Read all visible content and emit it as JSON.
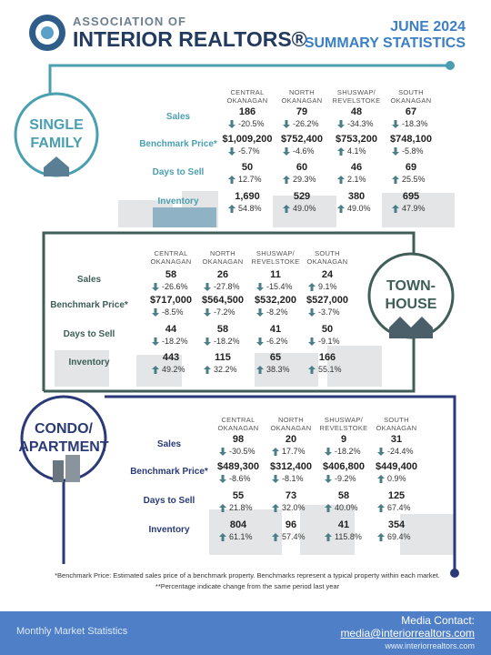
{
  "header": {
    "org_line1": "ASSOCIATION OF",
    "org_line2": "INTERIOR REALTORS®",
    "title_line1": "JUNE 2024",
    "title_line2": "SUMMARY STATISTICS"
  },
  "sections": [
    {
      "label": [
        "SINGLE",
        "FAMILY"
      ],
      "regions": [
        [
          "CENTRAL",
          "OKANAGAN"
        ],
        [
          "NORTH",
          "OKANAGAN"
        ],
        [
          "SHUSWAP/",
          "REVELSTOKE"
        ],
        [
          "SOUTH",
          "OKANAGAN"
        ]
      ],
      "rows": [
        {
          "label": "Sales",
          "cells": [
            {
              "value": "186",
              "change": "-20.5%"
            },
            {
              "value": "79",
              "change": "-26.2%"
            },
            {
              "value": "48",
              "change": "-34.3%"
            },
            {
              "value": "67",
              "change": "-18.3%"
            }
          ]
        },
        {
          "label": "Benchmark Price*",
          "cells": [
            {
              "value": "$1,009,200",
              "change": "-5.7%"
            },
            {
              "value": "$752,400",
              "change": "-4.6%"
            },
            {
              "value": "$753,200",
              "change": "4.1%"
            },
            {
              "value": "$748,100",
              "change": "-5.8%"
            }
          ]
        },
        {
          "label": "Days to Sell",
          "cells": [
            {
              "value": "50",
              "change": "12.7%"
            },
            {
              "value": "60",
              "change": "29.3%"
            },
            {
              "value": "46",
              "change": "2.1%"
            },
            {
              "value": "69",
              "change": "25.5%"
            }
          ]
        },
        {
          "label": "Inventory",
          "cells": [
            {
              "value": "1,690",
              "change": "54.8%"
            },
            {
              "value": "529",
              "change": "49.0%"
            },
            {
              "value": "380",
              "change": "49.0%"
            },
            {
              "value": "695",
              "change": "47.9%"
            }
          ]
        }
      ]
    },
    {
      "label": [
        "TOWN-",
        "HOUSE"
      ],
      "regions": [
        [
          "CENTRAL",
          "OKANAGAN"
        ],
        [
          "NORTH",
          "OKANAGAN"
        ],
        [
          "SHUSWAP/",
          "REVELSTOKE"
        ],
        [
          "SOUTH",
          "OKANAGAN"
        ]
      ],
      "rows": [
        {
          "label": "Sales",
          "cells": [
            {
              "value": "58",
              "change": "-26.6%"
            },
            {
              "value": "26",
              "change": "-27.8%"
            },
            {
              "value": "11",
              "change": "-15.4%"
            },
            {
              "value": "24",
              "change": "9.1%"
            }
          ]
        },
        {
          "label": "Benchmark Price*",
          "cells": [
            {
              "value": "$717,000",
              "change": "-8.5%"
            },
            {
              "value": "$564,500",
              "change": "-7.2%"
            },
            {
              "value": "$532,200",
              "change": "-8.2%"
            },
            {
              "value": "$527,000",
              "change": "-3.7%"
            }
          ]
        },
        {
          "label": "Days to Sell",
          "cells": [
            {
              "value": "44",
              "change": "-18.2%"
            },
            {
              "value": "58",
              "change": "-18.2%"
            },
            {
              "value": "41",
              "change": "-6.2%"
            },
            {
              "value": "50",
              "change": "-9.1%"
            }
          ]
        },
        {
          "label": "Inventory",
          "cells": [
            {
              "value": "443",
              "change": "49.2%"
            },
            {
              "value": "115",
              "change": "32.2%"
            },
            {
              "value": "65",
              "change": "38.3%"
            },
            {
              "value": "166",
              "change": "55.1%"
            }
          ]
        }
      ]
    },
    {
      "label": [
        "CONDO/",
        "APARTMENT"
      ],
      "regions": [
        [
          "CENTRAL",
          "OKANAGAN"
        ],
        [
          "NORTH",
          "OKANAGAN"
        ],
        [
          "SHUSWAP/",
          "REVELSTOKE"
        ],
        [
          "SOUTH",
          "OKANAGAN"
        ]
      ],
      "rows": [
        {
          "label": "Sales",
          "cells": [
            {
              "value": "98",
              "change": "-30.5%"
            },
            {
              "value": "20",
              "change": "17.7%"
            },
            {
              "value": "9",
              "change": "-18.2%"
            },
            {
              "value": "31",
              "change": "-24.4%"
            }
          ]
        },
        {
          "label": "Benchmark Price*",
          "cells": [
            {
              "value": "$489,300",
              "change": "-8.6%"
            },
            {
              "value": "$312,400",
              "change": "-8.1%"
            },
            {
              "value": "$406,800",
              "change": "-9.2%"
            },
            {
              "value": "$449,400",
              "change": "0.9%"
            }
          ]
        },
        {
          "label": "Days to Sell",
          "cells": [
            {
              "value": "55",
              "change": "21.8%"
            },
            {
              "value": "73",
              "change": "32.0%"
            },
            {
              "value": "58",
              "change": "40.0%"
            },
            {
              "value": "125",
              "change": "67.4%"
            }
          ]
        },
        {
          "label": "Inventory",
          "cells": [
            {
              "value": "804",
              "change": "61.1%"
            },
            {
              "value": "96",
              "change": "57.4%"
            },
            {
              "value": "41",
              "change": "115.8%"
            },
            {
              "value": "354",
              "change": "69.4%"
            }
          ]
        }
      ]
    }
  ],
  "footnotes": [
    "*Benchmark Price: Estimated sales price of a benchmark property. Benchmarks represent a typical property within each market.",
    "**Percentage indicate change from the same period last year"
  ],
  "footer": {
    "tagline": "Monthly Market Statistics",
    "contact_label": "Media Contact:",
    "email": "media@interiorrealtors.com",
    "website": "www.interiorrealtors.com"
  }
}
